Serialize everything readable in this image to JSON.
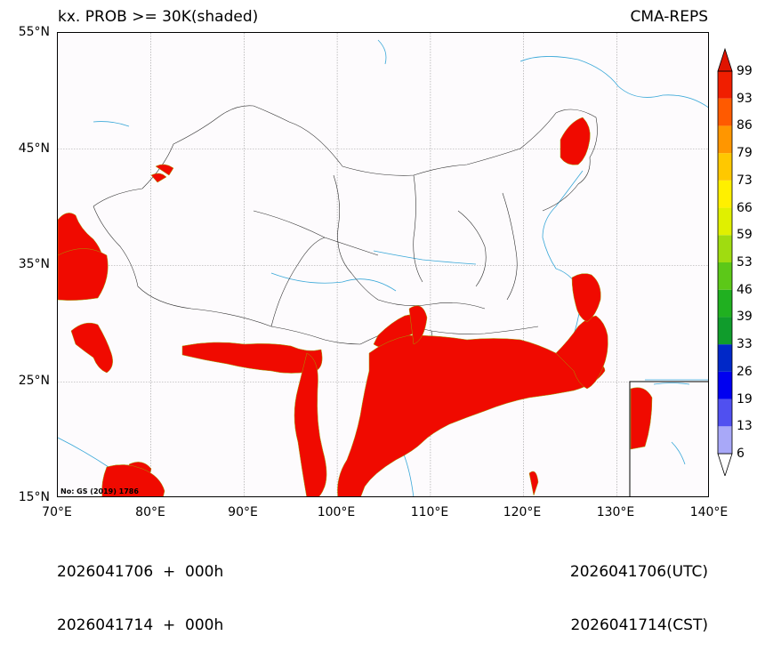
{
  "header": {
    "title_left": "kx. PROB >= 30K(shaded)",
    "title_right": "CMA-REPS"
  },
  "map": {
    "lat_labels": [
      "55°N",
      "45°N",
      "35°N",
      "25°N",
      "15°N"
    ],
    "lon_labels": [
      "70°E",
      "80°E",
      "90°E",
      "100°E",
      "110°E",
      "120°E",
      "130°E",
      "140°E"
    ],
    "note": "No: GS (2019) 1786",
    "shade_color": "#f00a00"
  },
  "colorbar": {
    "labels": [
      "6",
      "13",
      "19",
      "26",
      "33",
      "39",
      "46",
      "53",
      "59",
      "66",
      "73",
      "79",
      "86",
      "93",
      "99"
    ],
    "colors": [
      "#ffffff",
      "#a8a8f8",
      "#5050f0",
      "#0000f0",
      "#0028c8",
      "#109c2c",
      "#20b020",
      "#5cc818",
      "#a0dc10",
      "#e0f000",
      "#fff000",
      "#ffc800",
      "#ff9600",
      "#ff5a00",
      "#f01e00",
      "#e01400"
    ]
  },
  "footer": {
    "left_line1": "2026041706  +  000h",
    "left_line2": "2026041714  +  000h",
    "right_line1": "2026041706(UTC)",
    "right_line2": "2026041714(CST)"
  }
}
